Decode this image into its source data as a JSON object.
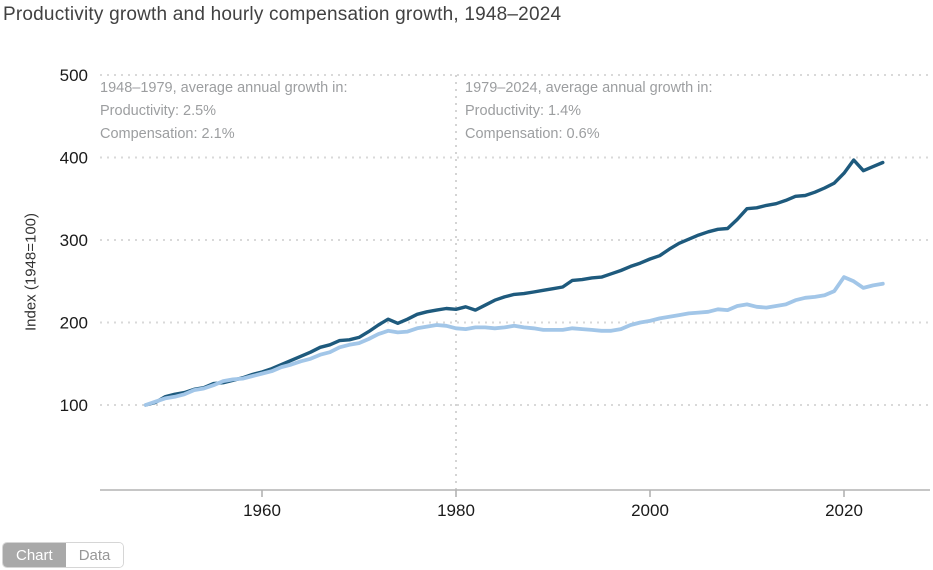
{
  "title": "Productivity growth and hourly compensation growth, 1948–2024",
  "y_axis_title": "Index (1948=100)",
  "annotations": [
    {
      "heading": "1948–1979, average annual growth in:",
      "productivity": "Productivity: 2.5%",
      "compensation": "Compensation: 2.1%"
    },
    {
      "heading": "1979–2024, average annual growth in:",
      "productivity": "Productivity: 1.4%",
      "compensation": "Compensation: 0.6%"
    }
  ],
  "tabs": {
    "chart_label": "Chart",
    "data_label": "Data",
    "active": "Chart"
  },
  "colors": {
    "productivity_line": "#1e5a7d",
    "compensation_line": "#a2c6e8",
    "gridline": "#d9d9d9",
    "divider_line": "#cfcfcf",
    "axis_line": "#b3b3b3",
    "annotation_text": "#9c9ea0",
    "title_text": "#414141",
    "active_tab_bg": "#a9a9a9"
  },
  "chart_data": {
    "type": "line",
    "title": "Productivity growth and hourly compensation growth, 1948–2024",
    "xlabel": "",
    "ylabel": "Index (1948=100)",
    "ylim": [
      0,
      500
    ],
    "y_ticks": [
      100,
      200,
      300,
      400,
      500
    ],
    "x_ticks": [
      1960,
      1980,
      2000,
      2020
    ],
    "grid": "dotted-horizontal",
    "legend": "none",
    "divider_year": 1980,
    "x": [
      1948,
      1949,
      1950,
      1951,
      1952,
      1953,
      1954,
      1955,
      1956,
      1957,
      1958,
      1959,
      1960,
      1961,
      1962,
      1963,
      1964,
      1965,
      1966,
      1967,
      1968,
      1969,
      1970,
      1971,
      1972,
      1973,
      1974,
      1975,
      1976,
      1977,
      1978,
      1979,
      1980,
      1981,
      1982,
      1983,
      1984,
      1985,
      1986,
      1987,
      1988,
      1989,
      1990,
      1991,
      1992,
      1993,
      1994,
      1995,
      1996,
      1997,
      1998,
      1999,
      2000,
      2001,
      2002,
      2003,
      2004,
      2005,
      2006,
      2007,
      2008,
      2009,
      2010,
      2011,
      2012,
      2013,
      2014,
      2015,
      2016,
      2017,
      2018,
      2019,
      2020,
      2021,
      2022,
      2023,
      2024
    ],
    "series": [
      {
        "name": "Productivity",
        "color": "#1e5a7d",
        "values": [
          100,
          103,
          110,
          113,
          115,
          119,
          121,
          126,
          127,
          130,
          133,
          137,
          140,
          144,
          149,
          154,
          159,
          164,
          170,
          173,
          178,
          179,
          182,
          189,
          197,
          204,
          199,
          204,
          210,
          213,
          215,
          217,
          216,
          219,
          215,
          221,
          227,
          231,
          234,
          235,
          237,
          239,
          241,
          243,
          251,
          252,
          254,
          255,
          259,
          263,
          268,
          272,
          277,
          281,
          289,
          296,
          301,
          306,
          310,
          313,
          314,
          325,
          338,
          339,
          342,
          344,
          348,
          353,
          354,
          358,
          363,
          369,
          381,
          397,
          384,
          389,
          394
        ]
      },
      {
        "name": "Hourly compensation",
        "color": "#a2c6e8",
        "values": [
          100,
          104,
          108,
          110,
          113,
          118,
          120,
          124,
          129,
          131,
          132,
          135,
          138,
          141,
          146,
          149,
          153,
          156,
          161,
          164,
          170,
          173,
          175,
          180,
          186,
          190,
          188,
          189,
          193,
          195,
          197,
          196,
          193,
          192,
          194,
          194,
          193,
          194,
          196,
          194,
          193,
          191,
          191,
          191,
          193,
          192,
          191,
          190,
          190,
          192,
          197,
          200,
          202,
          205,
          207,
          209,
          211,
          212,
          213,
          216,
          215,
          220,
          222,
          219,
          218,
          220,
          222,
          227,
          230,
          231,
          233,
          238,
          255,
          250,
          242,
          245,
          247
        ]
      }
    ]
  }
}
